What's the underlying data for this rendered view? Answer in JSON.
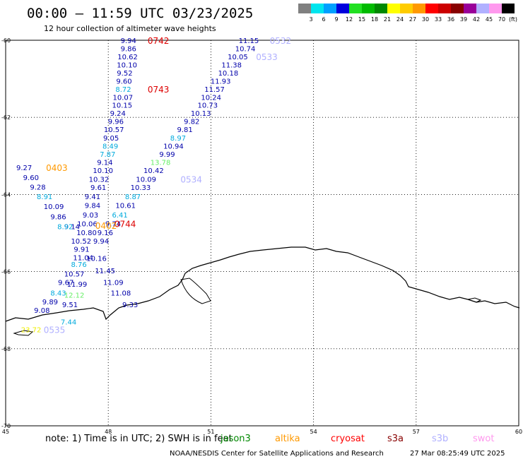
{
  "title": "00:00 – 11:59 UTC 03/23/2025",
  "subtitle": "12 hour collection of altimeter wave heights",
  "legend": {
    "unit": "(ft)",
    "items": [
      {
        "label": "3",
        "color": "#808080"
      },
      {
        "label": "6",
        "color": "#00e5ee"
      },
      {
        "label": "9",
        "color": "#00a0ff"
      },
      {
        "label": "12",
        "color": "#0000dd"
      },
      {
        "label": "15",
        "color": "#22e022"
      },
      {
        "label": "18",
        "color": "#00bb00"
      },
      {
        "label": "21",
        "color": "#008800"
      },
      {
        "label": "24",
        "color": "#ffff00"
      },
      {
        "label": "27",
        "color": "#ffcc00"
      },
      {
        "label": "30",
        "color": "#ff9900"
      },
      {
        "label": "33",
        "color": "#ff0000"
      },
      {
        "label": "36",
        "color": "#cc0000"
      },
      {
        "label": "39",
        "color": "#880000"
      },
      {
        "label": "42",
        "color": "#990099"
      },
      {
        "label": "45",
        "color": "#b0b0ff"
      },
      {
        "label": "70",
        "color": "#ff99ee"
      },
      {
        "label": "",
        "color": "#000000"
      }
    ]
  },
  "axes": {
    "lat_labels": [
      "-60",
      "-62",
      "-64",
      "-66",
      "-68",
      "-70"
    ],
    "lon_labels": [
      "45",
      "48",
      "51",
      "54",
      "57",
      "60"
    ]
  },
  "observations": [
    {
      "v": "9.94",
      "c": "#0000aa",
      "lon": 48.36,
      "lat": -60.0
    },
    {
      "v": "9.86",
      "c": "#0000aa",
      "lon": 48.36,
      "lat": -60.21
    },
    {
      "v": "10.62",
      "c": "#0000aa",
      "lon": 48.27,
      "lat": -60.42
    },
    {
      "v": "10.10",
      "c": "#0000aa",
      "lon": 48.25,
      "lat": -60.63
    },
    {
      "v": "9.52",
      "c": "#0000aa",
      "lon": 48.25,
      "lat": -60.84
    },
    {
      "v": "9.60",
      "c": "#0000aa",
      "lon": 48.23,
      "lat": -61.05
    },
    {
      "v": "8.72",
      "c": "#00aadd",
      "lon": 48.21,
      "lat": -61.26
    },
    {
      "v": "10.07",
      "c": "#0000aa",
      "lon": 48.13,
      "lat": -61.47
    },
    {
      "v": "10.15",
      "c": "#0000aa",
      "lon": 48.11,
      "lat": -61.68
    },
    {
      "v": "9.24",
      "c": "#0000aa",
      "lon": 48.05,
      "lat": -61.89
    },
    {
      "v": "9.96",
      "c": "#0000aa",
      "lon": 47.99,
      "lat": -62.1
    },
    {
      "v": "10.57",
      "c": "#0000aa",
      "lon": 47.87,
      "lat": -62.31
    },
    {
      "v": "9.05",
      "c": "#0000aa",
      "lon": 47.85,
      "lat": -62.53
    },
    {
      "v": "8.49",
      "c": "#00aadd",
      "lon": 47.83,
      "lat": -62.74
    },
    {
      "v": "7.87",
      "c": "#00aadd",
      "lon": 47.75,
      "lat": -62.95
    },
    {
      "v": "9.14",
      "c": "#0000aa",
      "lon": 47.67,
      "lat": -63.16
    },
    {
      "v": "10.10",
      "c": "#0000aa",
      "lon": 47.55,
      "lat": -63.37
    },
    {
      "v": "10.32",
      "c": "#0000aa",
      "lon": 47.43,
      "lat": -63.6
    },
    {
      "v": "9.61",
      "c": "#0000aa",
      "lon": 47.48,
      "lat": -63.81
    },
    {
      "v": "9.41",
      "c": "#0000aa",
      "lon": 47.31,
      "lat": -64.05
    },
    {
      "v": "9.84",
      "c": "#0000aa",
      "lon": 47.31,
      "lat": -64.28
    },
    {
      "v": "9.03",
      "c": "#0000aa",
      "lon": 47.25,
      "lat": -64.52
    },
    {
      "v": "10.06",
      "c": "#0000aa",
      "lon": 47.09,
      "lat": -64.75
    },
    {
      "v": "9.14",
      "c": "#0000aa",
      "lon": 46.71,
      "lat": -64.83
    },
    {
      "v": "10.80",
      "c": "#0000aa",
      "lon": 47.07,
      "lat": -64.98
    },
    {
      "v": "10.52",
      "c": "#0000aa",
      "lon": 46.91,
      "lat": -65.2
    },
    {
      "v": "9.91",
      "c": "#0000aa",
      "lon": 46.99,
      "lat": -65.41
    },
    {
      "v": "11.04",
      "c": "#0000aa",
      "lon": 46.97,
      "lat": -65.63
    },
    {
      "v": "8.76",
      "c": "#00aadd",
      "lon": 46.91,
      "lat": -65.81
    },
    {
      "v": "10.57",
      "c": "#0000aa",
      "lon": 46.71,
      "lat": -66.05
    },
    {
      "v": "9.67",
      "c": "#0000aa",
      "lon": 46.53,
      "lat": -66.27
    },
    {
      "v": "11.99",
      "c": "#0000aa",
      "lon": 46.79,
      "lat": -66.32
    },
    {
      "v": "8.43",
      "c": "#00aadd",
      "lon": 46.31,
      "lat": -66.55
    },
    {
      "v": "12.12",
      "c": "#66ee66",
      "lon": 46.71,
      "lat": -66.6
    },
    {
      "v": "9.89",
      "c": "#0000aa",
      "lon": 46.07,
      "lat": -66.78
    },
    {
      "v": "9.51",
      "c": "#0000aa",
      "lon": 46.65,
      "lat": -66.85
    },
    {
      "v": "9.08",
      "c": "#0000aa",
      "lon": 45.83,
      "lat": -67.0
    },
    {
      "v": "7.44",
      "c": "#00aadd",
      "lon": 46.61,
      "lat": -67.3
    },
    {
      "v": "10.16",
      "c": "#0000aa",
      "lon": 47.36,
      "lat": -65.65
    },
    {
      "v": "11.45",
      "c": "#0000aa",
      "lon": 47.61,
      "lat": -65.97
    },
    {
      "v": "11.09",
      "c": "#0000aa",
      "lon": 47.85,
      "lat": -66.27
    },
    {
      "v": "11.08",
      "c": "#0000aa",
      "lon": 48.07,
      "lat": -66.55
    },
    {
      "v": "9.33",
      "c": "#0000aa",
      "lon": 48.41,
      "lat": -66.85
    },
    {
      "v": "9.16",
      "c": "#0000aa",
      "lon": 47.68,
      "lat": -64.98
    },
    {
      "v": "9.94",
      "c": "#0000aa",
      "lon": 47.56,
      "lat": -65.2
    },
    {
      "v": "9.74",
      "c": "#0000aa",
      "lon": 47.91,
      "lat": -64.75
    },
    {
      "v": "6.41",
      "c": "#00aadd",
      "lon": 48.11,
      "lat": -64.52
    },
    {
      "v": "10.61",
      "c": "#0000aa",
      "lon": 48.21,
      "lat": -64.28
    },
    {
      "v": "8.87",
      "c": "#00aadd",
      "lon": 48.49,
      "lat": -64.05
    },
    {
      "v": "10.33",
      "c": "#0000aa",
      "lon": 48.65,
      "lat": -63.81
    },
    {
      "v": "10.09",
      "c": "#0000aa",
      "lon": 48.81,
      "lat": -63.6
    },
    {
      "v": "10.42",
      "c": "#0000aa",
      "lon": 49.03,
      "lat": -63.37
    },
    {
      "v": "13.78",
      "c": "#66ee66",
      "lon": 49.23,
      "lat": -63.16
    },
    {
      "v": "9.99",
      "c": "#0000aa",
      "lon": 49.49,
      "lat": -62.95
    },
    {
      "v": "10.94",
      "c": "#0000aa",
      "lon": 49.61,
      "lat": -62.74
    },
    {
      "v": "8.97",
      "c": "#00aadd",
      "lon": 49.81,
      "lat": -62.53
    },
    {
      "v": "9.81",
      "c": "#0000aa",
      "lon": 50.01,
      "lat": -62.31
    },
    {
      "v": "9.82",
      "c": "#0000aa",
      "lon": 50.21,
      "lat": -62.1
    },
    {
      "v": "10.13",
      "c": "#0000aa",
      "lon": 50.41,
      "lat": -61.89
    },
    {
      "v": "10.73",
      "c": "#0000aa",
      "lon": 50.61,
      "lat": -61.68
    },
    {
      "v": "10.24",
      "c": "#0000aa",
      "lon": 50.71,
      "lat": -61.47
    },
    {
      "v": "11.57",
      "c": "#0000aa",
      "lon": 50.81,
      "lat": -61.26
    },
    {
      "v": "11.93",
      "c": "#0000aa",
      "lon": 50.99,
      "lat": -61.05
    },
    {
      "v": "10.18",
      "c": "#0000aa",
      "lon": 51.21,
      "lat": -60.84
    },
    {
      "v": "11.38",
      "c": "#0000aa",
      "lon": 51.31,
      "lat": -60.63
    },
    {
      "v": "10.05",
      "c": "#0000aa",
      "lon": 51.49,
      "lat": -60.42
    },
    {
      "v": "10.74",
      "c": "#0000aa",
      "lon": 51.71,
      "lat": -60.21
    },
    {
      "v": "11.15",
      "c": "#0000aa",
      "lon": 51.81,
      "lat": -60.0
    },
    {
      "v": "9.27",
      "c": "#0000aa",
      "lon": 45.31,
      "lat": -63.3
    },
    {
      "v": "9.60",
      "c": "#0000aa",
      "lon": 45.51,
      "lat": -63.55
    },
    {
      "v": "9.28",
      "c": "#0000aa",
      "lon": 45.71,
      "lat": -63.8
    },
    {
      "v": "8.91",
      "c": "#00aadd",
      "lon": 45.91,
      "lat": -64.05
    },
    {
      "v": "10.09",
      "c": "#0000aa",
      "lon": 46.11,
      "lat": -64.3
    },
    {
      "v": "9.86",
      "c": "#0000aa",
      "lon": 46.31,
      "lat": -64.57
    },
    {
      "v": "8.92",
      "c": "#00aadd",
      "lon": 46.51,
      "lat": -64.83
    },
    {
      "v": "23.72",
      "c": "#eeee00",
      "lon": 45.45,
      "lat": -67.5
    }
  ],
  "pass_times": [
    {
      "t": "0742",
      "c": "#dd0000",
      "lon": 49.15,
      "lat": -60.0
    },
    {
      "t": "0743",
      "c": "#dd0000",
      "lon": 49.15,
      "lat": -61.26
    },
    {
      "t": "0532",
      "c": "#b0b0ff",
      "lon": 52.72,
      "lat": -60.0
    },
    {
      "t": "0533",
      "c": "#b0b0ff",
      "lon": 52.32,
      "lat": -60.42
    },
    {
      "t": "0534",
      "c": "#b0b0ff",
      "lon": 50.11,
      "lat": -63.6
    },
    {
      "t": "0403",
      "c": "#ff9900",
      "lon": 46.18,
      "lat": -63.3
    },
    {
      "t": "0744",
      "c": "#dd0000",
      "lon": 48.18,
      "lat": -64.75
    },
    {
      "t": "0402",
      "c": "#ff9900",
      "lon": 47.62,
      "lat": -64.8
    },
    {
      "t": "0535",
      "c": "#b0b0ff",
      "lon": 46.11,
      "lat": -67.5
    }
  ],
  "note": {
    "prefix": "note: 1) Time is in UTC; 2) SWH is in feet",
    "satellites": [
      {
        "name": "jason3",
        "color": "#008800"
      },
      {
        "name": "altika",
        "color": "#ff9900"
      },
      {
        "name": "cryosat",
        "color": "#ff0000"
      },
      {
        "name": "s3a",
        "color": "#880000"
      },
      {
        "name": "s3b",
        "color": "#b0b0ff"
      },
      {
        "name": "swot",
        "color": "#ff99ee"
      }
    ]
  },
  "credit": "NOAA/NESDIS Center for Satellite Applications and Research",
  "timestamp": "27 Mar 08:25:49 UTC 2025"
}
